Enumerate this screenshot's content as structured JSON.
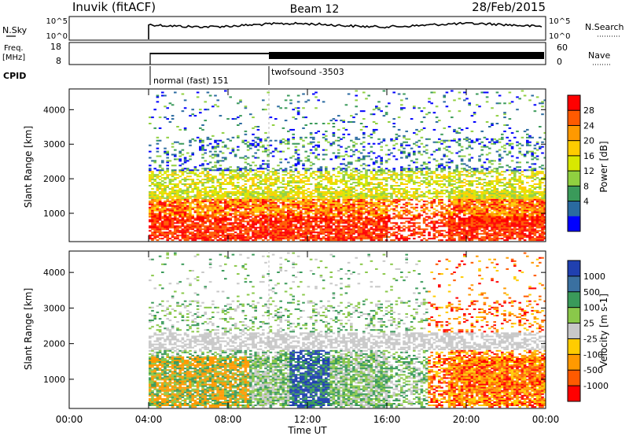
{
  "header": {
    "radar_title": "Inuvik (fitACF)",
    "beam_title": "Beam 12",
    "date_title": "28/Feb/2015"
  },
  "summary_panels": {
    "sky_label": "N.Sky",
    "search_label": "N.Search",
    "sky_ticks": [
      "10^5",
      "10^0"
    ],
    "freq_label_1": "Freq.",
    "freq_label_2": "[MHz]",
    "freq_ticks": [
      "18",
      "8"
    ],
    "nave_label": "Nave",
    "nave_ticks": [
      "60",
      "0"
    ],
    "cpid_label": "CPID",
    "cpid_segments": [
      "normal (fast) 151",
      "twofsound -3503"
    ]
  },
  "power_colorbar": {
    "title": "Power [dB]",
    "ticks": [
      "28",
      "24",
      "20",
      "16",
      "12",
      "8",
      "4"
    ],
    "colors": [
      "#ff0000",
      "#ff5a00",
      "#ff9900",
      "#ffcc00",
      "#d8e800",
      "#90d040",
      "#3a9a5a",
      "#2a6aa0",
      "#0000ff"
    ]
  },
  "velocity_colorbar": {
    "title": "Velocity [m s-1]",
    "ticks": [
      "1000",
      "500",
      "100",
      "25",
      "-25",
      "-100",
      "-500",
      "-1000"
    ],
    "colors": [
      "#2040b0",
      "#3a70a0",
      "#3a9a5a",
      "#8ac84a",
      "#c8c8c8",
      "#ffcc00",
      "#ff9900",
      "#ff5a00",
      "#ff0000"
    ]
  },
  "axes": {
    "ylabel": "Slant Range [km]",
    "xlabel": "Time UT",
    "x_ticks": [
      "00:00",
      "04:00",
      "08:00",
      "12:00",
      "16:00",
      "20:00",
      "00:00"
    ],
    "y_ticks": [
      "1000",
      "2000",
      "3000",
      "4000"
    ]
  },
  "chart_data": [
    {
      "type": "heatmap",
      "panel": "power",
      "x_range_hours": [
        0,
        24
      ],
      "y_range_km": [
        180,
        4600
      ],
      "data_start_hour": 4,
      "mode_change_hour": 10,
      "colorbar_label": "Power [dB]",
      "colorbar_ticks": [
        28,
        24,
        20,
        16,
        12,
        8,
        4
      ]
    },
    {
      "type": "heatmap",
      "panel": "velocity",
      "x_range_hours": [
        0,
        24
      ],
      "y_range_km": [
        180,
        4600
      ],
      "data_start_hour": 4,
      "mode_change_hour": 10,
      "colorbar_label": "Velocity [m s-1]",
      "colorbar_ticks": [
        1000,
        500,
        100,
        25,
        -25,
        -100,
        -500,
        -1000
      ]
    }
  ]
}
